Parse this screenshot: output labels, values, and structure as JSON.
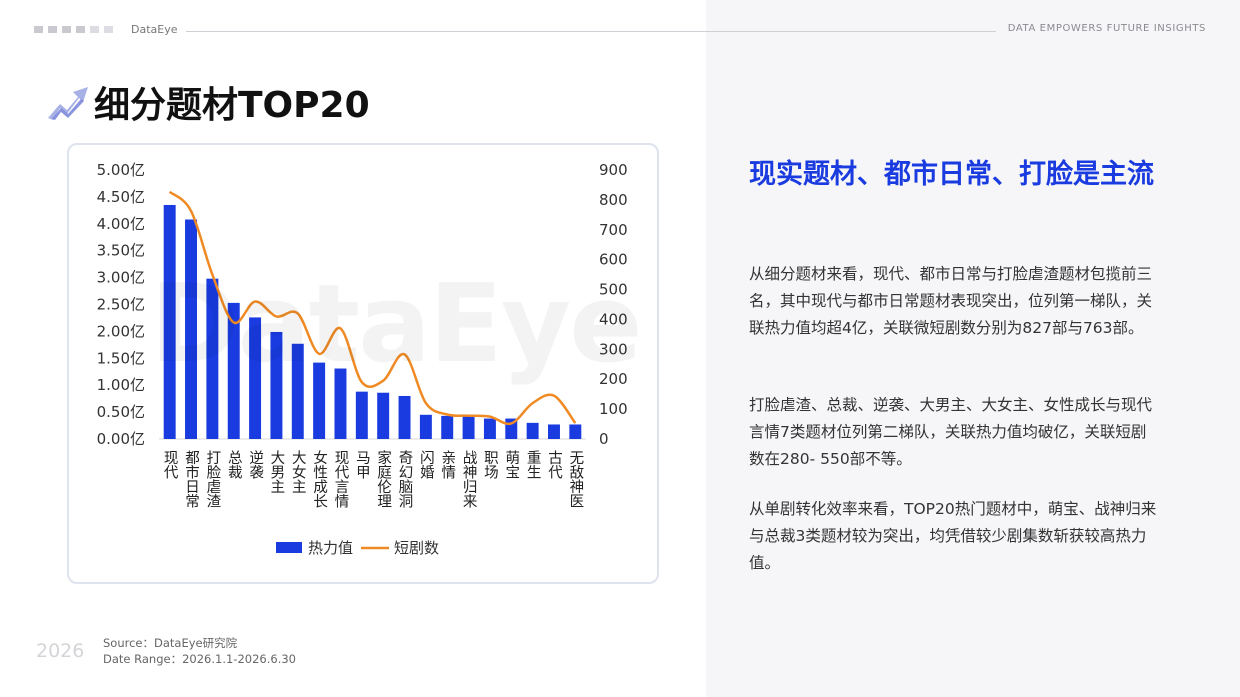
{
  "header": {
    "brand": "DataEye",
    "slogan": "DATA  EMPOWERS  FUTURE  INSIGHTS"
  },
  "page": {
    "title": "细分题材TOP20",
    "watermark": "DataEye"
  },
  "colors": {
    "bar": "#1a3be0",
    "line": "#f08a24",
    "accent": "#1a3be0"
  },
  "icons": {
    "title": "trend-arrow-icon"
  },
  "chart_data": {
    "type": "bar",
    "categories": [
      "现代",
      "都市日常",
      "打脸虐渣",
      "总裁",
      "逆袭",
      "大男主",
      "大女主",
      "女性成长",
      "现代言情",
      "马甲",
      "家庭伦理",
      "奇幻脑洞",
      "闪婚",
      "亲情",
      "战神归来",
      "职场",
      "萌宝",
      "重生",
      "古代",
      "无敌神医"
    ],
    "series": [
      {
        "name": "热力值",
        "type": "bar",
        "axis": "left",
        "values": [
          4.35,
          4.08,
          2.98,
          2.53,
          2.26,
          1.99,
          1.77,
          1.42,
          1.31,
          0.88,
          0.86,
          0.8,
          0.45,
          0.43,
          0.42,
          0.38,
          0.38,
          0.3,
          0.27,
          0.27
        ]
      },
      {
        "name": "短剧数",
        "type": "line",
        "axis": "right",
        "values": [
          827,
          763,
          550,
          390,
          460,
          410,
          420,
          285,
          370,
          190,
          195,
          283,
          120,
          82,
          78,
          75,
          52,
          120,
          145,
          53
        ]
      }
    ],
    "y_left": {
      "min": 0,
      "max": 5,
      "step": 0.5,
      "tick_labels": [
        "0.00亿",
        "0.50亿",
        "1.00亿",
        "1.50亿",
        "2.00亿",
        "2.50亿",
        "3.00亿",
        "3.50亿",
        "4.00亿",
        "4.50亿",
        "5.00亿"
      ]
    },
    "y_right": {
      "min": 0,
      "max": 900,
      "step": 100,
      "tick_labels": [
        "0",
        "100",
        "200",
        "300",
        "400",
        "500",
        "600",
        "700",
        "800",
        "900"
      ]
    },
    "grid": false,
    "legend": "bottom"
  },
  "panel": {
    "headline": "现实题材、都市日常、打脸是主流",
    "paragraphs": [
      "从细分题材来看，现代、都市日常与打脸虐渣题材包揽前三名，其中现代与都市日常题材表现突出，位列第一梯队，关联热力值均超4亿，关联微短剧数分别为827部与763部。",
      "打脸虐渣、总裁、逆袭、大男主、大女主、女性成长与现代言情7类题材位列第二梯队，关联热力值均破亿，关联短剧数在280- 550部不等。",
      "从单剧转化效率来看，TOP20热门题材中，萌宝、战神归来与总裁3类题材较为突出，均凭借较少剧集数斩获较高热力值。"
    ]
  },
  "footer": {
    "year": "2026",
    "source": "Source：DataEye研究院",
    "range": "Date Range：2026.1.1-2026.6.30"
  }
}
